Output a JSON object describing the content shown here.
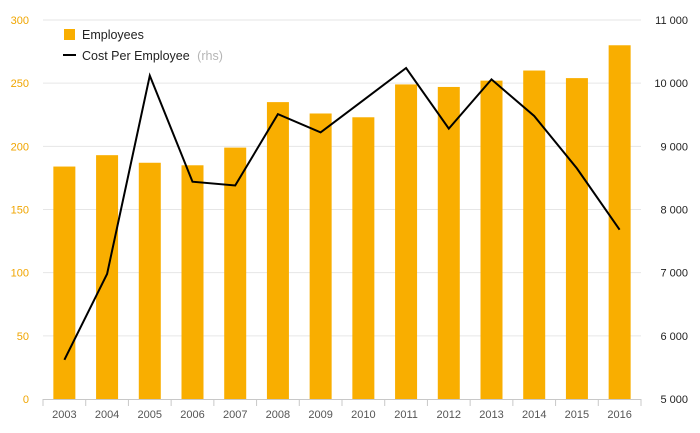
{
  "chart_data": {
    "type": "bar+line",
    "categories": [
      "2003",
      "2004",
      "2005",
      "2006",
      "2007",
      "2008",
      "2009",
      "2010",
      "2011",
      "2012",
      "2013",
      "2014",
      "2015",
      "2016"
    ],
    "series": [
      {
        "name": "Employees",
        "type": "bar",
        "axis": "left",
        "color": "#f9ae00",
        "values": [
          184,
          193,
          187,
          185,
          199,
          235,
          226,
          223,
          249,
          247,
          252,
          260,
          254,
          280
        ]
      },
      {
        "name": "Cost Per Employee",
        "name_suffix": "(rhs)",
        "type": "line",
        "axis": "right",
        "color": "#000000",
        "values": [
          5620,
          6980,
          10120,
          8440,
          8380,
          9510,
          9220,
          9730,
          10240,
          9280,
          10060,
          9480,
          8650,
          7680
        ]
      }
    ],
    "left_axis": {
      "min": 0,
      "max": 300,
      "ticks": [
        0,
        50,
        100,
        150,
        200,
        250,
        300
      ],
      "tick_color": "#f0a500"
    },
    "right_axis": {
      "min": 5000,
      "max": 11000,
      "ticks": [
        "5 000",
        "6 000",
        "7 000",
        "8 000",
        "9 000",
        "10 000",
        "11 000"
      ]
    },
    "grid": true,
    "legend_position": "top-left"
  }
}
